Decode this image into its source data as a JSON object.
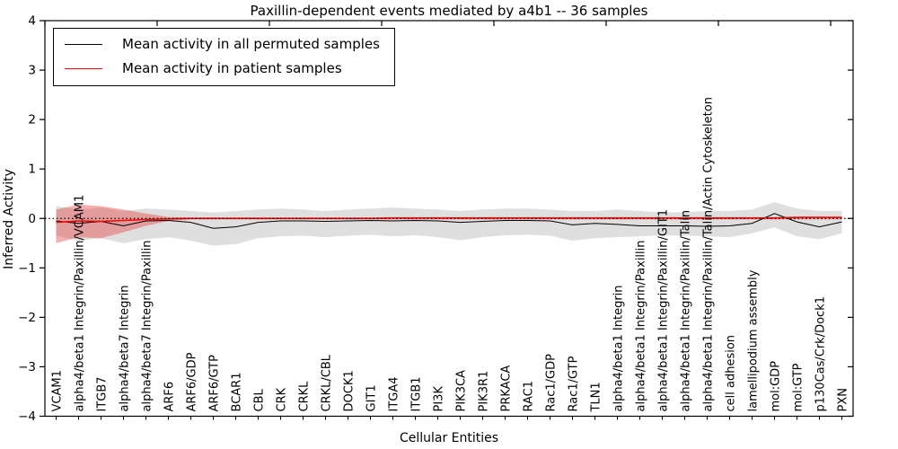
{
  "chart_data": {
    "type": "line",
    "title": "Paxillin-dependent events mediated by a4b1 -- 36 samples",
    "xlabel": "Cellular Entities",
    "ylabel": "Inferred Activity",
    "ylim": [
      -4,
      4
    ],
    "yticks": [
      -4,
      -3,
      -2,
      -1,
      0,
      1,
      2,
      3,
      4
    ],
    "ytick_labels": [
      "−4",
      "−3",
      "−2",
      "−1",
      "0",
      "1",
      "2",
      "3",
      "4"
    ],
    "grid": false,
    "legend_position": "upper-left",
    "zero_line": {
      "y": 0,
      "style": "dotted",
      "color": "#000000"
    },
    "categories": [
      "VCAM1",
      "alpha4/beta1 Integrin/Paxillin/VCAM1",
      "ITGB7",
      "alpha4/beta7 Integrin",
      "alpha4/beta7 Integrin/Paxillin",
      "ARF6",
      "ARF6/GDP",
      "ARF6/GTP",
      "BCAR1",
      "CBL",
      "CRK",
      "CRKL",
      "CRKL/CBL",
      "DOCK1",
      "GIT1",
      "ITGA4",
      "ITGB1",
      "PI3K",
      "PIK3CA",
      "PIK3R1",
      "PRKACA",
      "RAC1",
      "Rac1/GDP",
      "Rac1/GTP",
      "TLN1",
      "alpha4/beta1 Integrin",
      "alpha4/beta1 Integrin/Paxillin",
      "alpha4/beta1 Integrin/Paxillin/GIT1",
      "alpha4/beta1 Integrin/Paxillin/Talin",
      "alpha4/beta1 Integrin/Paxillin/Talin/Actin Cytoskeleton",
      "cell adhesion",
      "lamellipodium assembly",
      "mol:GDP",
      "mol:GTP",
      "p130Cas/Crk/Dock1",
      "PXN"
    ],
    "series": [
      {
        "name": "Mean activity in all permuted samples",
        "color": "#000000",
        "line_width": 1,
        "values": [
          -0.05,
          -0.1,
          -0.06,
          -0.15,
          -0.05,
          -0.04,
          -0.08,
          -0.2,
          -0.17,
          -0.08,
          -0.05,
          -0.05,
          -0.06,
          -0.05,
          -0.04,
          -0.05,
          -0.04,
          -0.05,
          -0.08,
          -0.06,
          -0.04,
          -0.04,
          -0.05,
          -0.13,
          -0.1,
          -0.12,
          -0.15,
          -0.15,
          -0.15,
          -0.16,
          -0.15,
          -0.1,
          0.1,
          -0.07,
          -0.17,
          -0.07
        ],
        "band": {
          "color": "#aaaaaa",
          "opacity": 0.38,
          "upper": [
            0.25,
            0.18,
            0.22,
            0.15,
            0.2,
            0.18,
            0.15,
            0.12,
            0.15,
            0.18,
            0.2,
            0.18,
            0.15,
            0.18,
            0.2,
            0.22,
            0.2,
            0.18,
            0.15,
            0.18,
            0.2,
            0.2,
            0.18,
            0.15,
            0.15,
            0.18,
            0.15,
            0.12,
            0.13,
            0.15,
            0.15,
            0.18,
            0.33,
            0.2,
            0.15,
            0.15
          ],
          "lower": [
            -0.35,
            -0.45,
            -0.4,
            -0.5,
            -0.42,
            -0.38,
            -0.45,
            -0.55,
            -0.52,
            -0.4,
            -0.36,
            -0.35,
            -0.38,
            -0.35,
            -0.33,
            -0.36,
            -0.34,
            -0.38,
            -0.44,
            -0.38,
            -0.34,
            -0.33,
            -0.35,
            -0.45,
            -0.4,
            -0.38,
            -0.36,
            -0.34,
            -0.35,
            -0.36,
            -0.38,
            -0.3,
            -0.18,
            -0.36,
            -0.42,
            -0.3
          ]
        }
      },
      {
        "name": "Mean activity in patient samples",
        "color": "#ff0000",
        "line_width": 1.5,
        "values": [
          -0.08,
          -0.05,
          -0.06,
          -0.04,
          -0.02,
          -0.01,
          0.0,
          0.0,
          0.0,
          0.0,
          0.0,
          0.0,
          0.0,
          0.0,
          0.0,
          0.01,
          0.01,
          0.01,
          0.01,
          0.01,
          0.01,
          0.01,
          0.01,
          0.01,
          0.01,
          0.01,
          0.01,
          0.01,
          0.01,
          0.01,
          0.01,
          0.01,
          0.01,
          0.02,
          0.02,
          0.02
        ],
        "band": {
          "color": "#e84040",
          "opacity": 0.42,
          "upper": [
            0.18,
            0.28,
            0.25,
            0.18,
            0.1,
            0.03,
            0.02,
            0.02,
            0.02,
            0.02,
            0.02,
            0.02,
            0.02,
            0.02,
            0.02,
            0.03,
            0.03,
            0.03,
            0.03,
            0.03,
            0.03,
            0.03,
            0.03,
            0.03,
            0.03,
            0.03,
            0.03,
            0.03,
            0.03,
            0.03,
            0.03,
            0.03,
            0.03,
            0.04,
            0.04,
            0.04
          ],
          "lower": [
            -0.5,
            -0.38,
            -0.4,
            -0.28,
            -0.15,
            -0.05,
            -0.02,
            -0.02,
            -0.02,
            -0.02,
            -0.02,
            -0.02,
            -0.02,
            -0.02,
            -0.02,
            -0.02,
            -0.02,
            -0.02,
            -0.02,
            -0.02,
            -0.02,
            -0.02,
            -0.02,
            -0.02,
            -0.02,
            -0.02,
            -0.02,
            -0.02,
            -0.02,
            -0.02,
            -0.02,
            -0.02,
            -0.02,
            -0.02,
            -0.02,
            -0.02
          ]
        }
      }
    ]
  }
}
